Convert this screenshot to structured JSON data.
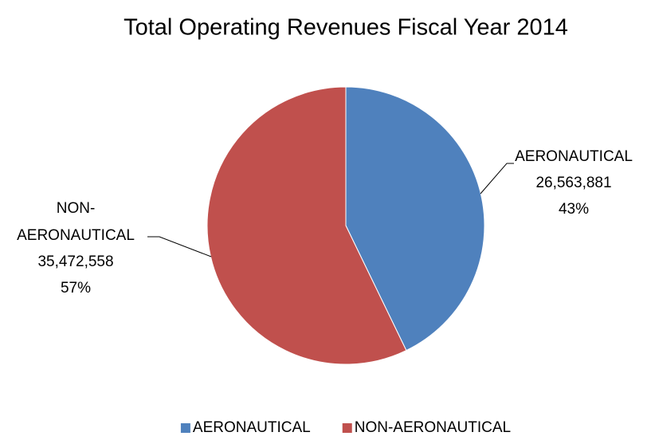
{
  "chart_data": {
    "type": "pie",
    "title": "Total Operating Revenues Fiscal Year 2014",
    "categories": [
      "AERONAUTICAL",
      "NON-AERONAUTICAL"
    ],
    "values": [
      26563881,
      35472558
    ],
    "value_labels": [
      "26,563,881",
      "35,472,558"
    ],
    "percents": [
      43,
      57
    ],
    "percent_labels": [
      "43%",
      "57%"
    ],
    "colors": [
      "#4f81bd",
      "#c0504d"
    ],
    "legend": "bottom"
  }
}
